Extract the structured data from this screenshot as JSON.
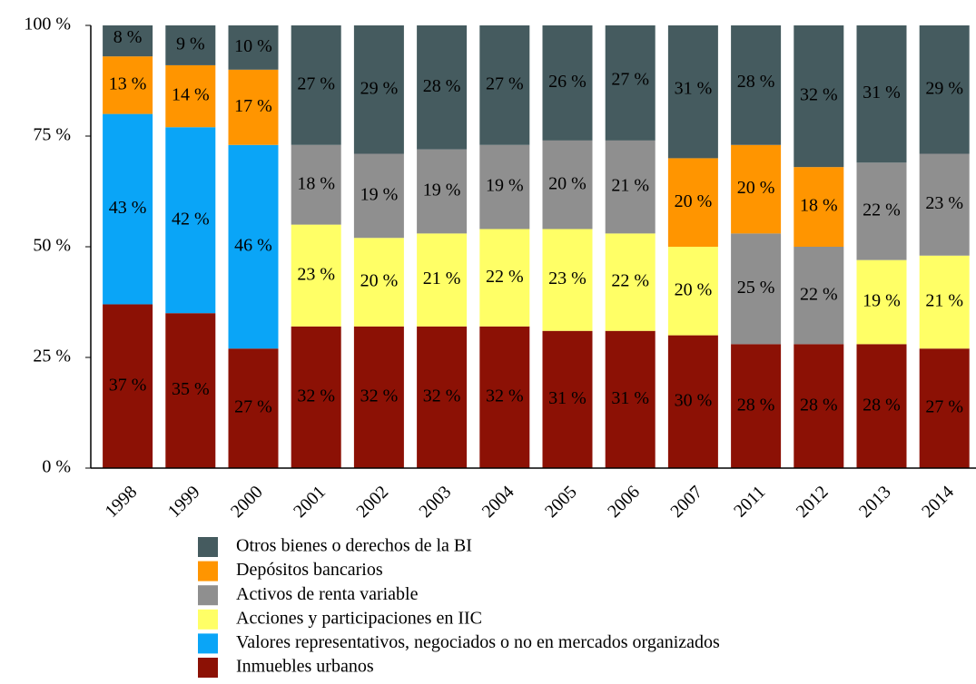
{
  "chart_data": {
    "type": "stacked_bar",
    "categories": [
      "1998",
      "1999",
      "2000",
      "2001",
      "2002",
      "2003",
      "2004",
      "2005",
      "2006",
      "2007",
      "2011",
      "2012",
      "2013",
      "2014"
    ],
    "series": [
      {
        "name": "Inmuebles urbanos",
        "color": "#8c1105",
        "values": [
          37,
          35,
          27,
          32,
          32,
          32,
          32,
          31,
          31,
          30,
          28,
          28,
          28,
          27
        ],
        "value_labels": [
          "37 %",
          "35 %",
          "27 %",
          "32 %",
          "32 %",
          "32 %",
          "32 %",
          "31 %",
          "31 %",
          "30 %",
          "28 %",
          "28 %",
          "28 %",
          "27 %"
        ]
      },
      {
        "name": "Valores representativos, negociados o no en mercados organizados",
        "color": "#0aa5f7",
        "values": [
          43,
          42,
          46,
          null,
          null,
          null,
          null,
          null,
          null,
          null,
          null,
          null,
          null,
          null
        ],
        "value_labels": [
          "43 %",
          "42 %",
          "46 %",
          null,
          null,
          null,
          null,
          null,
          null,
          null,
          null,
          null,
          null,
          null
        ]
      },
      {
        "name": "Acciones y participaciones en IIC",
        "color": "#ffff66",
        "values": [
          null,
          null,
          null,
          23,
          20,
          21,
          22,
          23,
          22,
          20,
          null,
          null,
          19,
          21
        ],
        "value_labels": [
          null,
          null,
          null,
          "23 %",
          "20 %",
          "21 %",
          "22 %",
          "23 %",
          "22 %",
          "20 %",
          null,
          null,
          "19 %",
          "21 %"
        ]
      },
      {
        "name": "Activos de renta variable",
        "color": "#8f8f8f",
        "values": [
          null,
          null,
          null,
          18,
          19,
          19,
          19,
          20,
          21,
          null,
          25,
          22,
          22,
          23
        ],
        "value_labels": [
          null,
          null,
          null,
          "18 %",
          "19 %",
          "19 %",
          "19 %",
          "20 %",
          "21 %",
          null,
          "25 %",
          "22 %",
          "22 %",
          "23 %"
        ]
      },
      {
        "name": "Depósitos bancarios",
        "color": "#ff9500",
        "values": [
          13,
          14,
          17,
          null,
          null,
          null,
          null,
          null,
          null,
          20,
          20,
          18,
          null,
          null
        ],
        "value_labels": [
          "13 %",
          "14 %",
          "17 %",
          null,
          null,
          null,
          null,
          null,
          null,
          "20 %",
          "20 %",
          "18 %",
          null,
          null
        ]
      },
      {
        "name": "Otros bienes o derechos de la BI",
        "color": "#455b5f",
        "values": [
          8,
          9,
          10,
          27,
          29,
          28,
          27,
          26,
          27,
          31,
          28,
          32,
          31,
          29
        ],
        "value_labels": [
          "8 %",
          "9 %",
          "10 %",
          "27 %",
          "29 %",
          "28 %",
          "27 %",
          "26 %",
          "27 %",
          "31 %",
          "28 %",
          "32 %",
          "31 %",
          "29 %"
        ]
      }
    ],
    "ylim": [
      0,
      100
    ],
    "yticks": [
      {
        "value": 0,
        "label": "0 %"
      },
      {
        "value": 25,
        "label": "25 %"
      },
      {
        "value": 50,
        "label": "50 %"
      },
      {
        "value": 75,
        "label": "75 %"
      },
      {
        "value": 100,
        "label": "100 %"
      }
    ]
  }
}
